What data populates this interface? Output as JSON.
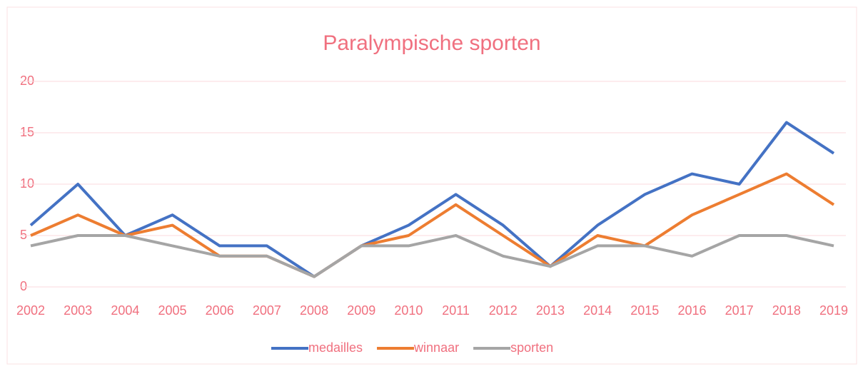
{
  "chart_data": {
    "type": "line",
    "title": "Paralympische sporten",
    "categories": [
      "2002",
      "2003",
      "2004",
      "2005",
      "2006",
      "2007",
      "2008",
      "2009",
      "2010",
      "2011",
      "2012",
      "2013",
      "2014",
      "2015",
      "2016",
      "2017",
      "2018",
      "2019"
    ],
    "series": [
      {
        "name": "medailles",
        "color": "#4472c4",
        "values": [
          6,
          10,
          5,
          7,
          4,
          4,
          1,
          4,
          6,
          9,
          6,
          2,
          6,
          9,
          11,
          10,
          16,
          13
        ]
      },
      {
        "name": "winnaar",
        "color": "#ed7d31",
        "values": [
          5,
          7,
          5,
          6,
          3,
          3,
          1,
          4,
          5,
          8,
          5,
          2,
          5,
          4,
          7,
          9,
          11,
          8
        ]
      },
      {
        "name": "sporten",
        "color": "#a5a5a5",
        "values": [
          4,
          5,
          5,
          4,
          3,
          3,
          1,
          4,
          4,
          5,
          3,
          2,
          4,
          4,
          3,
          5,
          5,
          4
        ]
      }
    ],
    "ylim": [
      0,
      20
    ],
    "yticks": [
      0,
      5,
      10,
      15,
      20
    ],
    "grid": true,
    "legend": "bottom"
  }
}
